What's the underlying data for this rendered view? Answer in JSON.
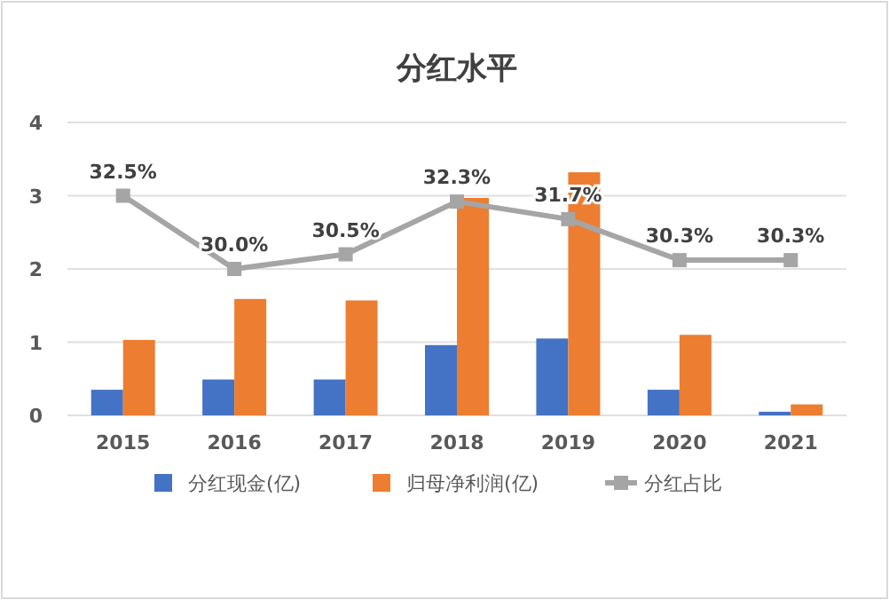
{
  "chart_data": {
    "type": "bar",
    "title": "分红水平",
    "categories": [
      "2015",
      "2016",
      "2017",
      "2018",
      "2019",
      "2020",
      "2021"
    ],
    "series": [
      {
        "name": "分红现金(亿)",
        "color": "#4472c4",
        "values": [
          0.35,
          0.49,
          0.49,
          0.96,
          1.05,
          0.35,
          0.05
        ]
      },
      {
        "name": "归母净利润(亿)",
        "color": "#ed7d31",
        "values": [
          1.03,
          1.59,
          1.57,
          2.97,
          3.32,
          1.1,
          0.15
        ]
      },
      {
        "name": "分红占比",
        "type": "line",
        "axis": "y2",
        "color": "#a5a5a5",
        "marker": "square",
        "values": [
          32.5,
          30.0,
          30.5,
          32.3,
          31.7,
          30.3,
          30.3
        ],
        "value_labels": [
          "32.5%",
          "30.0%",
          "30.5%",
          "32.3%",
          "31.7%",
          "30.3%",
          "30.3%"
        ]
      }
    ],
    "ylim": [
      0,
      4
    ],
    "yticks": [
      0,
      1,
      2,
      3,
      4
    ],
    "y2lim": [
      25,
      35
    ],
    "grid": "y",
    "legend": "bottom"
  }
}
